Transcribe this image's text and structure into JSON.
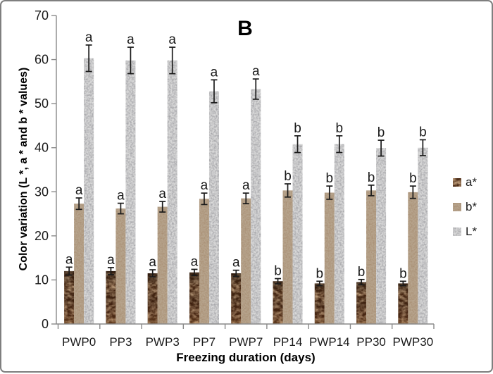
{
  "figure": {
    "background": "#ffffff",
    "border_color": "#7f7f7f"
  },
  "chart_data": {
    "type": "bar",
    "title": "B",
    "xlabel": "Freezing duration (days)",
    "ylabel": "Color variation (L *, a * and b * values)",
    "ylim": [
      0,
      70
    ],
    "yticks": [
      0,
      10,
      20,
      30,
      40,
      50,
      60,
      70
    ],
    "grid": false,
    "legend_position": "right",
    "categories": [
      "PWP0",
      "PP3",
      "PWP3",
      "PP7",
      "PWP7",
      "PP14",
      "PWP14",
      "PP30",
      "PWP30"
    ],
    "series": [
      {
        "name": "a*",
        "color": "#4a2a15",
        "values": [
          12.0,
          12.0,
          11.5,
          11.7,
          11.5,
          9.7,
          9.2,
          9.5,
          9.2
        ],
        "errors": [
          0.9,
          0.8,
          0.8,
          0.7,
          0.7,
          0.6,
          0.5,
          0.6,
          0.5
        ],
        "letters": [
          "a",
          "a",
          "a",
          "a",
          "a",
          "b",
          "b",
          "b",
          "b"
        ]
      },
      {
        "name": "b*",
        "color": "#b7a58e",
        "values": [
          27.3,
          26.2,
          26.6,
          28.4,
          28.5,
          30.3,
          29.8,
          30.3,
          29.9
        ],
        "errors": [
          1.3,
          1.2,
          1.2,
          1.3,
          1.2,
          1.5,
          1.5,
          1.2,
          1.4
        ],
        "letters": [
          "a",
          "a",
          "a",
          "a",
          "a",
          "b",
          "b",
          "b",
          "b"
        ]
      },
      {
        "name": "L*",
        "color": "#d9d9d9",
        "values": [
          60.3,
          59.8,
          59.8,
          52.8,
          53.3,
          40.8,
          40.8,
          39.9,
          40.0
        ],
        "errors": [
          3.0,
          3.0,
          3.0,
          2.6,
          2.3,
          1.9,
          1.9,
          1.8,
          1.8
        ],
        "letters": [
          "a",
          "a",
          "a",
          "a",
          "a",
          "b",
          "b",
          "b",
          "b"
        ]
      }
    ],
    "colors": {
      "axis": "#898989",
      "text": "#1a1a1a",
      "error_bar": "#1a1a1a"
    }
  }
}
